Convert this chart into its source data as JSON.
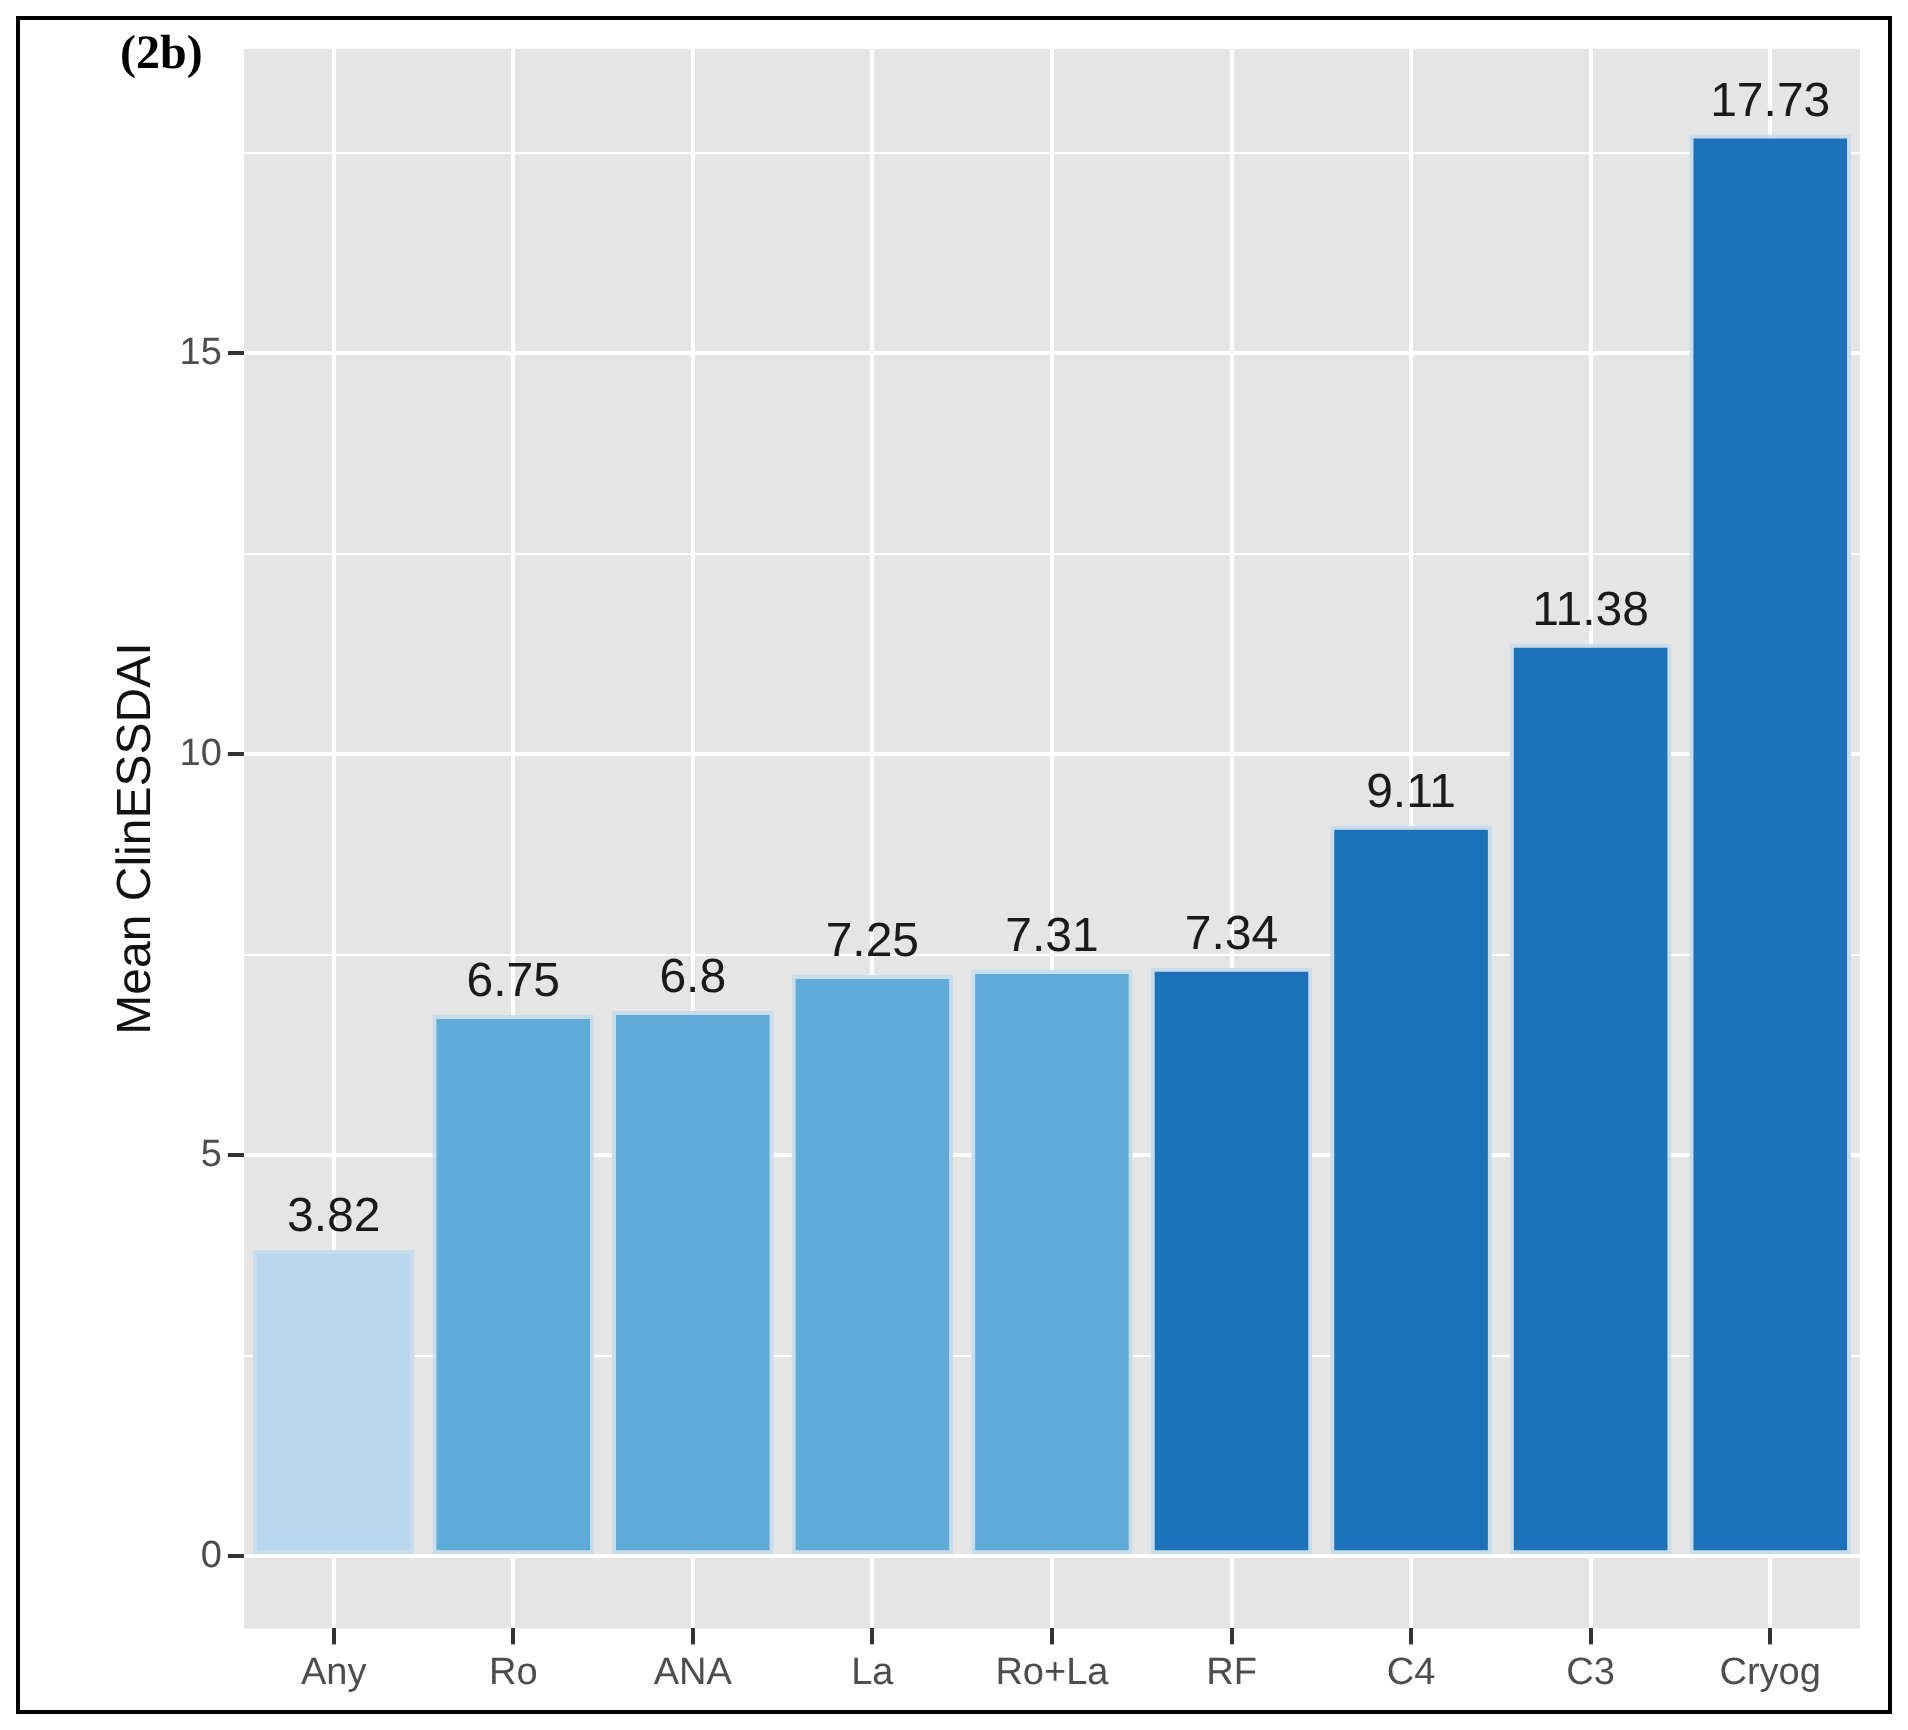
{
  "chart_data": {
    "type": "bar",
    "title": "(2b)",
    "ylabel": "Mean ClinESSDAI",
    "categories": [
      "Any",
      "Ro",
      "ANA",
      "La",
      "Ro+La",
      "RF",
      "C4",
      "C3",
      "Cryog"
    ],
    "values": [
      3.82,
      6.75,
      6.8,
      7.25,
      7.31,
      7.34,
      9.11,
      11.38,
      17.73
    ],
    "colors": [
      "#bad6ee",
      "#5eabd9",
      "#5eabd9",
      "#5eabd9",
      "#5eabd9",
      "#1c71b8",
      "#1c71b8",
      "#1c71b8",
      "#1c71b8"
    ],
    "ylim": [
      -0.9,
      18.8
    ],
    "yticks": [
      0,
      {
        "value": 2.5,
        "label": null
      },
      5,
      {
        "value": 7.5,
        "label": null
      },
      10,
      {
        "value": 12.5,
        "label": null
      },
      15,
      {
        "value": 17.5,
        "label": null
      }
    ],
    "grid": true,
    "data_labels": true,
    "legend": false
  }
}
